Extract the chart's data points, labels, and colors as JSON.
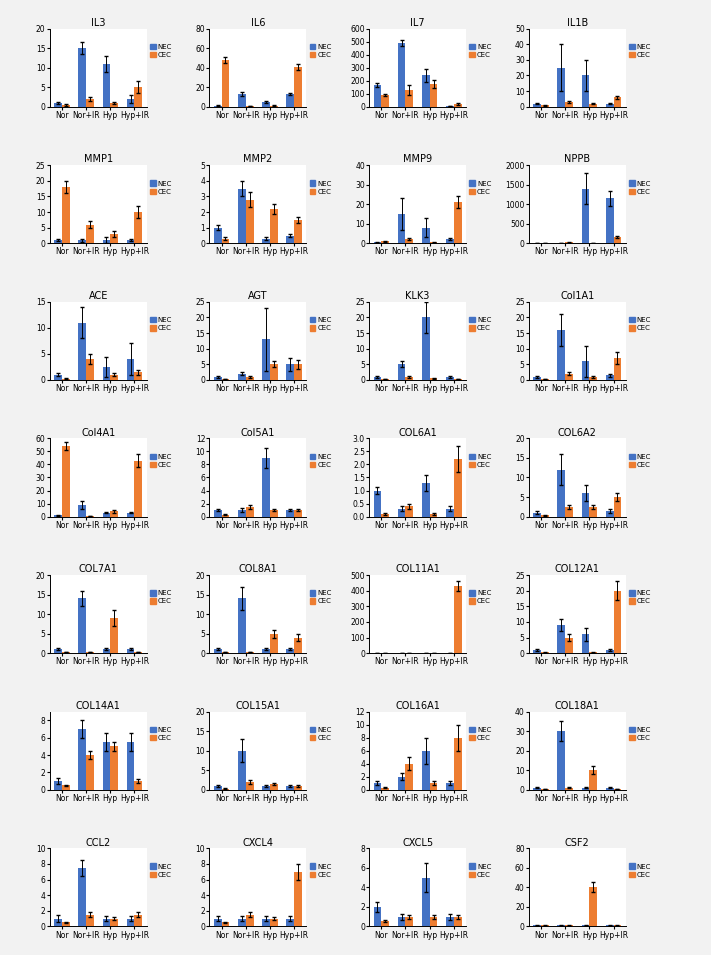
{
  "charts": [
    {
      "title": "IL3",
      "ylim": [
        0,
        20
      ],
      "yticks": [
        0,
        5,
        10,
        15,
        20
      ],
      "nec": [
        1,
        15,
        11,
        2
      ],
      "nec_err": [
        0.3,
        1.5,
        2,
        1
      ],
      "cec": [
        0.5,
        2,
        1,
        5
      ],
      "cec_err": [
        0.2,
        0.5,
        0.3,
        1.5
      ]
    },
    {
      "title": "IL6",
      "ylim": [
        0,
        80
      ],
      "yticks": [
        0,
        20,
        40,
        60,
        80
      ],
      "nec": [
        1,
        13,
        5,
        13
      ],
      "nec_err": [
        0.3,
        2,
        1,
        1
      ],
      "cec": [
        48,
        0.5,
        1,
        41
      ],
      "cec_err": [
        3,
        0.2,
        0.3,
        3
      ]
    },
    {
      "title": "IL7",
      "ylim": [
        0,
        600
      ],
      "yticks": [
        0,
        100,
        200,
        300,
        400,
        500,
        600
      ],
      "nec": [
        170,
        490,
        240,
        5
      ],
      "nec_err": [
        15,
        20,
        50,
        1
      ],
      "cec": [
        90,
        130,
        175,
        20
      ],
      "cec_err": [
        8,
        40,
        30,
        5
      ]
    },
    {
      "title": "IL1B",
      "ylim": [
        0,
        50
      ],
      "yticks": [
        0,
        10,
        20,
        30,
        40,
        50
      ],
      "nec": [
        2,
        25,
        20,
        2
      ],
      "nec_err": [
        0.5,
        15,
        10,
        0.5
      ],
      "cec": [
        1,
        3,
        2,
        6
      ],
      "cec_err": [
        0.3,
        0.5,
        0.3,
        1
      ]
    },
    {
      "title": "MMP1",
      "ylim": [
        0,
        25
      ],
      "yticks": [
        0,
        5,
        10,
        15,
        20,
        25
      ],
      "nec": [
        1,
        1,
        1,
        1
      ],
      "nec_err": [
        0.3,
        0.5,
        1,
        0.3
      ],
      "cec": [
        18,
        6,
        3,
        10
      ],
      "cec_err": [
        2,
        1,
        1,
        2
      ]
    },
    {
      "title": "MMP2",
      "ylim": [
        0,
        5
      ],
      "yticks": [
        0,
        1,
        2,
        3,
        4,
        5
      ],
      "nec": [
        1,
        3.5,
        0.3,
        0.5
      ],
      "nec_err": [
        0.15,
        0.5,
        0.1,
        0.1
      ],
      "cec": [
        0.3,
        2.8,
        2.2,
        1.5
      ],
      "cec_err": [
        0.1,
        0.5,
        0.3,
        0.2
      ]
    },
    {
      "title": "MMP9",
      "ylim": [
        0,
        40
      ],
      "yticks": [
        0,
        10,
        20,
        30,
        40
      ],
      "nec": [
        0.5,
        15,
        8,
        2
      ],
      "nec_err": [
        0.2,
        8,
        5,
        0.5
      ],
      "cec": [
        1,
        2,
        0.5,
        21
      ],
      "cec_err": [
        0.3,
        0.5,
        0.2,
        3
      ]
    },
    {
      "title": "NPPB",
      "ylim": [
        0,
        2000
      ],
      "yticks": [
        0,
        500,
        1000,
        1500,
        2000
      ],
      "nec": [
        1,
        5,
        1400,
        1150
      ],
      "nec_err": [
        0.5,
        2,
        400,
        200
      ],
      "cec": [
        0.5,
        30,
        1,
        160
      ],
      "cec_err": [
        0.2,
        10,
        0.5,
        30
      ]
    },
    {
      "title": "ACE",
      "ylim": [
        0,
        15
      ],
      "yticks": [
        0,
        5,
        10,
        15
      ],
      "nec": [
        1,
        11,
        2.5,
        4
      ],
      "nec_err": [
        0.3,
        3,
        2,
        3
      ],
      "cec": [
        0.2,
        4,
        1,
        1.5
      ],
      "cec_err": [
        0.1,
        1,
        0.3,
        0.5
      ]
    },
    {
      "title": "AGT",
      "ylim": [
        0,
        25
      ],
      "yticks": [
        0,
        5,
        10,
        15,
        20,
        25
      ],
      "nec": [
        1,
        2,
        13,
        5
      ],
      "nec_err": [
        0.3,
        0.5,
        10,
        2
      ],
      "cec": [
        0.3,
        1,
        5,
        5
      ],
      "cec_err": [
        0.1,
        0.3,
        1,
        1.5
      ]
    },
    {
      "title": "KLK3",
      "ylim": [
        0,
        25
      ],
      "yticks": [
        0,
        5,
        10,
        15,
        20,
        25
      ],
      "nec": [
        1,
        5,
        20,
        1
      ],
      "nec_err": [
        0.3,
        1,
        5,
        0.3
      ],
      "cec": [
        0.3,
        1,
        0.5,
        0.3
      ],
      "cec_err": [
        0.1,
        0.3,
        0.1,
        0.1
      ]
    },
    {
      "title": "Col1A1",
      "ylim": [
        0,
        25
      ],
      "yticks": [
        0,
        5,
        10,
        15,
        20,
        25
      ],
      "nec": [
        1,
        16,
        6,
        1.5
      ],
      "nec_err": [
        0.3,
        5,
        5,
        0.5
      ],
      "cec": [
        0.3,
        2,
        1,
        7
      ],
      "cec_err": [
        0.1,
        0.5,
        0.3,
        2
      ]
    },
    {
      "title": "Col4A1",
      "ylim": [
        0,
        60
      ],
      "yticks": [
        0,
        10,
        20,
        30,
        40,
        50,
        60
      ],
      "nec": [
        1,
        9,
        3,
        3
      ],
      "nec_err": [
        0.3,
        3,
        0.5,
        0.5
      ],
      "cec": [
        54,
        0.5,
        4,
        43
      ],
      "cec_err": [
        3,
        0.2,
        1,
        5
      ]
    },
    {
      "title": "Col5A1",
      "ylim": [
        0,
        12
      ],
      "yticks": [
        0,
        2,
        4,
        6,
        8,
        10,
        12
      ],
      "nec": [
        1,
        1,
        9,
        1
      ],
      "nec_err": [
        0.2,
        0.3,
        1.5,
        0.2
      ],
      "cec": [
        0.3,
        1.5,
        1,
        1
      ],
      "cec_err": [
        0.1,
        0.3,
        0.2,
        0.2
      ]
    },
    {
      "title": "COL6A1",
      "ylim": [
        0,
        3
      ],
      "yticks": [
        0,
        0.5,
        1,
        1.5,
        2,
        2.5,
        3
      ],
      "nec": [
        1,
        0.3,
        1.3,
        0.3
      ],
      "nec_err": [
        0.15,
        0.1,
        0.3,
        0.1
      ],
      "cec": [
        0.1,
        0.4,
        0.1,
        2.2
      ],
      "cec_err": [
        0.05,
        0.1,
        0.05,
        0.5
      ]
    },
    {
      "title": "COL6A2",
      "ylim": [
        0,
        20
      ],
      "yticks": [
        0,
        5,
        10,
        15,
        20
      ],
      "nec": [
        1,
        12,
        6,
        1.5
      ],
      "nec_err": [
        0.3,
        4,
        2,
        0.5
      ],
      "cec": [
        0.3,
        2.5,
        2.5,
        5
      ],
      "cec_err": [
        0.1,
        0.5,
        0.5,
        1
      ]
    },
    {
      "title": "COL7A1",
      "ylim": [
        0,
        20
      ],
      "yticks": [
        0,
        5,
        10,
        15,
        20
      ],
      "nec": [
        1,
        14,
        1,
        1
      ],
      "nec_err": [
        0.3,
        2,
        0.3,
        0.3
      ],
      "cec": [
        0.3,
        0.3,
        9,
        0.3
      ],
      "cec_err": [
        0.1,
        0.1,
        2,
        0.1
      ]
    },
    {
      "title": "COL8A1",
      "ylim": [
        0,
        20
      ],
      "yticks": [
        0,
        5,
        10,
        15,
        20
      ],
      "nec": [
        1,
        14,
        1,
        1
      ],
      "nec_err": [
        0.3,
        3,
        0.3,
        0.3
      ],
      "cec": [
        0.3,
        0.3,
        5,
        4
      ],
      "cec_err": [
        0.1,
        0.1,
        1,
        1
      ]
    },
    {
      "title": "COL11A1",
      "ylim": [
        0,
        500
      ],
      "yticks": [
        0,
        100,
        200,
        300,
        400,
        500
      ],
      "nec": [
        1,
        1,
        1,
        1
      ],
      "nec_err": [
        0.3,
        0.3,
        0.3,
        0.3
      ],
      "cec": [
        1,
        1,
        1,
        430
      ],
      "cec_err": [
        0.3,
        0.3,
        0.3,
        30
      ]
    },
    {
      "title": "COL12A1",
      "ylim": [
        0,
        25
      ],
      "yticks": [
        0,
        5,
        10,
        15,
        20,
        25
      ],
      "nec": [
        1,
        9,
        6,
        1
      ],
      "nec_err": [
        0.3,
        2,
        2,
        0.3
      ],
      "cec": [
        0.3,
        5,
        0.3,
        20
      ],
      "cec_err": [
        0.1,
        1,
        0.1,
        3
      ]
    },
    {
      "title": "COL14A1",
      "ylim": [
        0,
        9
      ],
      "yticks": [
        0,
        2,
        4,
        6,
        8
      ],
      "nec": [
        1,
        7,
        5.5,
        5.5
      ],
      "nec_err": [
        0.3,
        1,
        1,
        1
      ],
      "cec": [
        0.5,
        4,
        5,
        1
      ],
      "cec_err": [
        0.1,
        0.5,
        0.5,
        0.2
      ]
    },
    {
      "title": "COL15A1",
      "ylim": [
        0,
        20
      ],
      "yticks": [
        0,
        5,
        10,
        15,
        20
      ],
      "nec": [
        1,
        10,
        1,
        1
      ],
      "nec_err": [
        0.3,
        3,
        0.3,
        0.3
      ],
      "cec": [
        0.3,
        2,
        1.5,
        1
      ],
      "cec_err": [
        0.1,
        0.5,
        0.3,
        0.2
      ]
    },
    {
      "title": "COL16A1",
      "ylim": [
        0,
        12
      ],
      "yticks": [
        0,
        2,
        4,
        6,
        8,
        10,
        12
      ],
      "nec": [
        1,
        2,
        6,
        1
      ],
      "nec_err": [
        0.3,
        0.5,
        2,
        0.3
      ],
      "cec": [
        0.3,
        4,
        1,
        8
      ],
      "cec_err": [
        0.1,
        1,
        0.3,
        2
      ]
    },
    {
      "title": "COL18A1",
      "ylim": [
        0,
        40
      ],
      "yticks": [
        0,
        10,
        20,
        30,
        40
      ],
      "nec": [
        1,
        30,
        1,
        1
      ],
      "nec_err": [
        0.3,
        5,
        0.3,
        0.3
      ],
      "cec": [
        0.3,
        1,
        10,
        0.3
      ],
      "cec_err": [
        0.1,
        0.3,
        2,
        0.1
      ]
    },
    {
      "title": "CCL2",
      "ylim": [
        0,
        10
      ],
      "yticks": [
        0,
        2,
        4,
        6,
        8,
        10
      ],
      "nec": [
        1,
        7.5,
        1,
        1
      ],
      "nec_err": [
        0.5,
        1,
        0.3,
        0.3
      ],
      "cec": [
        0.5,
        1.5,
        1,
        1.5
      ],
      "cec_err": [
        0.1,
        0.3,
        0.2,
        0.3
      ]
    },
    {
      "title": "CXCL4",
      "ylim": [
        0,
        10
      ],
      "yticks": [
        0,
        2,
        4,
        6,
        8,
        10
      ],
      "nec": [
        1,
        1,
        1,
        1
      ],
      "nec_err": [
        0.3,
        0.3,
        0.3,
        0.3
      ],
      "cec": [
        0.5,
        1.5,
        1,
        7
      ],
      "cec_err": [
        0.1,
        0.3,
        0.2,
        1
      ]
    },
    {
      "title": "CXCL5",
      "ylim": [
        0,
        8
      ],
      "yticks": [
        0,
        2,
        4,
        6,
        8
      ],
      "nec": [
        2,
        1,
        5,
        1
      ],
      "nec_err": [
        0.5,
        0.3,
        1.5,
        0.3
      ],
      "cec": [
        0.5,
        1,
        1,
        1
      ],
      "cec_err": [
        0.1,
        0.2,
        0.2,
        0.2
      ]
    },
    {
      "title": "CSF2",
      "ylim": [
        0,
        80
      ],
      "yticks": [
        0,
        20,
        40,
        60,
        80
      ],
      "nec": [
        1,
        1,
        1,
        1
      ],
      "nec_err": [
        0.3,
        0.3,
        0.3,
        0.3
      ],
      "cec": [
        1,
        1,
        40,
        1
      ],
      "cec_err": [
        0.3,
        0.3,
        5,
        0.3
      ]
    }
  ],
  "categories": [
    "Nor",
    "Nor+IR",
    "Hyp",
    "Hyp+IR"
  ],
  "nec_color": "#4472C4",
  "cec_color": "#ED7D31",
  "bar_width": 0.32,
  "figsize": [
    7.11,
    9.55
  ],
  "nrows": 7,
  "ncols": 4,
  "background_color": "#F2F2F2",
  "subplot_bg": "#FFFFFF"
}
